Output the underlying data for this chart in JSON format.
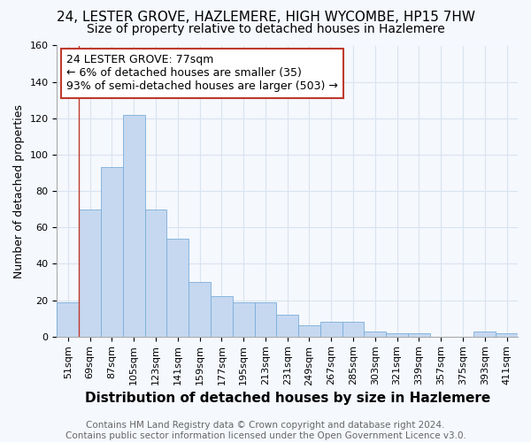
{
  "title": "24, LESTER GROVE, HAZLEMERE, HIGH WYCOMBE, HP15 7HW",
  "subtitle": "Size of property relative to detached houses in Hazlemere",
  "xlabel": "Distribution of detached houses by size in Hazlemere",
  "ylabel": "Number of detached properties",
  "categories": [
    "51sqm",
    "69sqm",
    "87sqm",
    "105sqm",
    "123sqm",
    "141sqm",
    "159sqm",
    "177sqm",
    "195sqm",
    "213sqm",
    "231sqm",
    "249sqm",
    "267sqm",
    "285sqm",
    "303sqm",
    "321sqm",
    "339sqm",
    "357sqm",
    "375sqm",
    "393sqm",
    "411sqm"
  ],
  "values": [
    19,
    70,
    93,
    122,
    70,
    54,
    30,
    22,
    19,
    19,
    12,
    6,
    8,
    8,
    3,
    2,
    2,
    0,
    0,
    3,
    2
  ],
  "bar_color": "#c5d8f0",
  "bar_edge_color": "#7aadda",
  "vline_color": "#c0392b",
  "annotation_text": "24 LESTER GROVE: 77sqm\n← 6% of detached houses are smaller (35)\n93% of semi-detached houses are larger (503) →",
  "annotation_box_color": "#c0392b",
  "ylim": [
    0,
    160
  ],
  "yticks": [
    0,
    20,
    40,
    60,
    80,
    100,
    120,
    140,
    160
  ],
  "footer_text": "Contains HM Land Registry data © Crown copyright and database right 2024.\nContains public sector information licensed under the Open Government Licence v3.0.",
  "background_color": "#f5f8fd",
  "grid_color": "#d8e4f0",
  "title_fontsize": 11,
  "subtitle_fontsize": 10,
  "xlabel_fontsize": 11,
  "ylabel_fontsize": 9,
  "tick_fontsize": 8,
  "annotation_fontsize": 9,
  "footer_fontsize": 7.5
}
